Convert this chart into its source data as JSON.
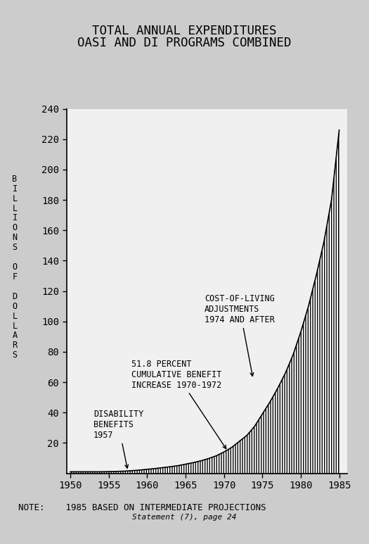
{
  "title_line1": "TOTAL ANNUAL EXPENDITURES",
  "title_line2": "OASI AND DI PROGRAMS COMBINED",
  "ylabel_chars": "BILLIONS OF DOLLARS",
  "xlabel_ticks": [
    1950,
    1955,
    1960,
    1965,
    1970,
    1975,
    1980,
    1985
  ],
  "yticks": [
    20,
    40,
    60,
    80,
    100,
    120,
    140,
    160,
    180,
    200,
    220,
    240
  ],
  "xmin": 1949.5,
  "xmax": 1986.0,
  "ymin": 0,
  "ymax": 240,
  "note_line1": "NOTE:    1985 BASED ON INTERMEDIATE PROJECTIONS",
  "note_line2": "Statement (7), page 24",
  "bg_color": "#cccccc",
  "plot_bg_color": "#f0f0f0",
  "years": [
    1950,
    1951,
    1952,
    1953,
    1954,
    1955,
    1956,
    1957,
    1958,
    1959,
    1960,
    1961,
    1962,
    1963,
    1964,
    1965,
    1966,
    1967,
    1968,
    1969,
    1970,
    1971,
    1972,
    1973,
    1974,
    1975,
    1976,
    1977,
    1978,
    1979,
    1980,
    1981,
    1982,
    1983,
    1984,
    1985
  ],
  "values": [
    1.0,
    1.0,
    1.0,
    1.0,
    1.0,
    1.1,
    1.2,
    1.4,
    1.7,
    2.1,
    2.6,
    3.1,
    3.7,
    4.3,
    5.0,
    6.0,
    7.0,
    8.2,
    9.7,
    11.5,
    14.0,
    17.0,
    21.0,
    25.0,
    31.0,
    39.0,
    47.0,
    56.0,
    66.0,
    78.0,
    93.0,
    110.0,
    130.0,
    152.0,
    180.0,
    226.0
  ],
  "annotations": [
    {
      "text": "DISABILITY\nBENEFITS\n1957",
      "xy_x": 1957.5,
      "xy_y": 1.4,
      "xt_x": 1953.0,
      "xt_y": 32,
      "ha": "left"
    },
    {
      "text": "51.8 PERCENT\nCUMULATIVE BENEFIT\nINCREASE 1970-1972",
      "xy_x": 1970.5,
      "xy_y": 14.5,
      "xt_x": 1958.0,
      "xt_y": 65,
      "ha": "left"
    },
    {
      "text": "COST-OF-LIVING\nADJUSTMENTS\n1974 AND AFTER",
      "xy_x": 1973.8,
      "xy_y": 62,
      "xt_x": 1967.5,
      "xt_y": 108,
      "ha": "left"
    }
  ],
  "fontsize_annot": 8.5,
  "fontsize_tick": 10,
  "fontsize_title": 12.5
}
